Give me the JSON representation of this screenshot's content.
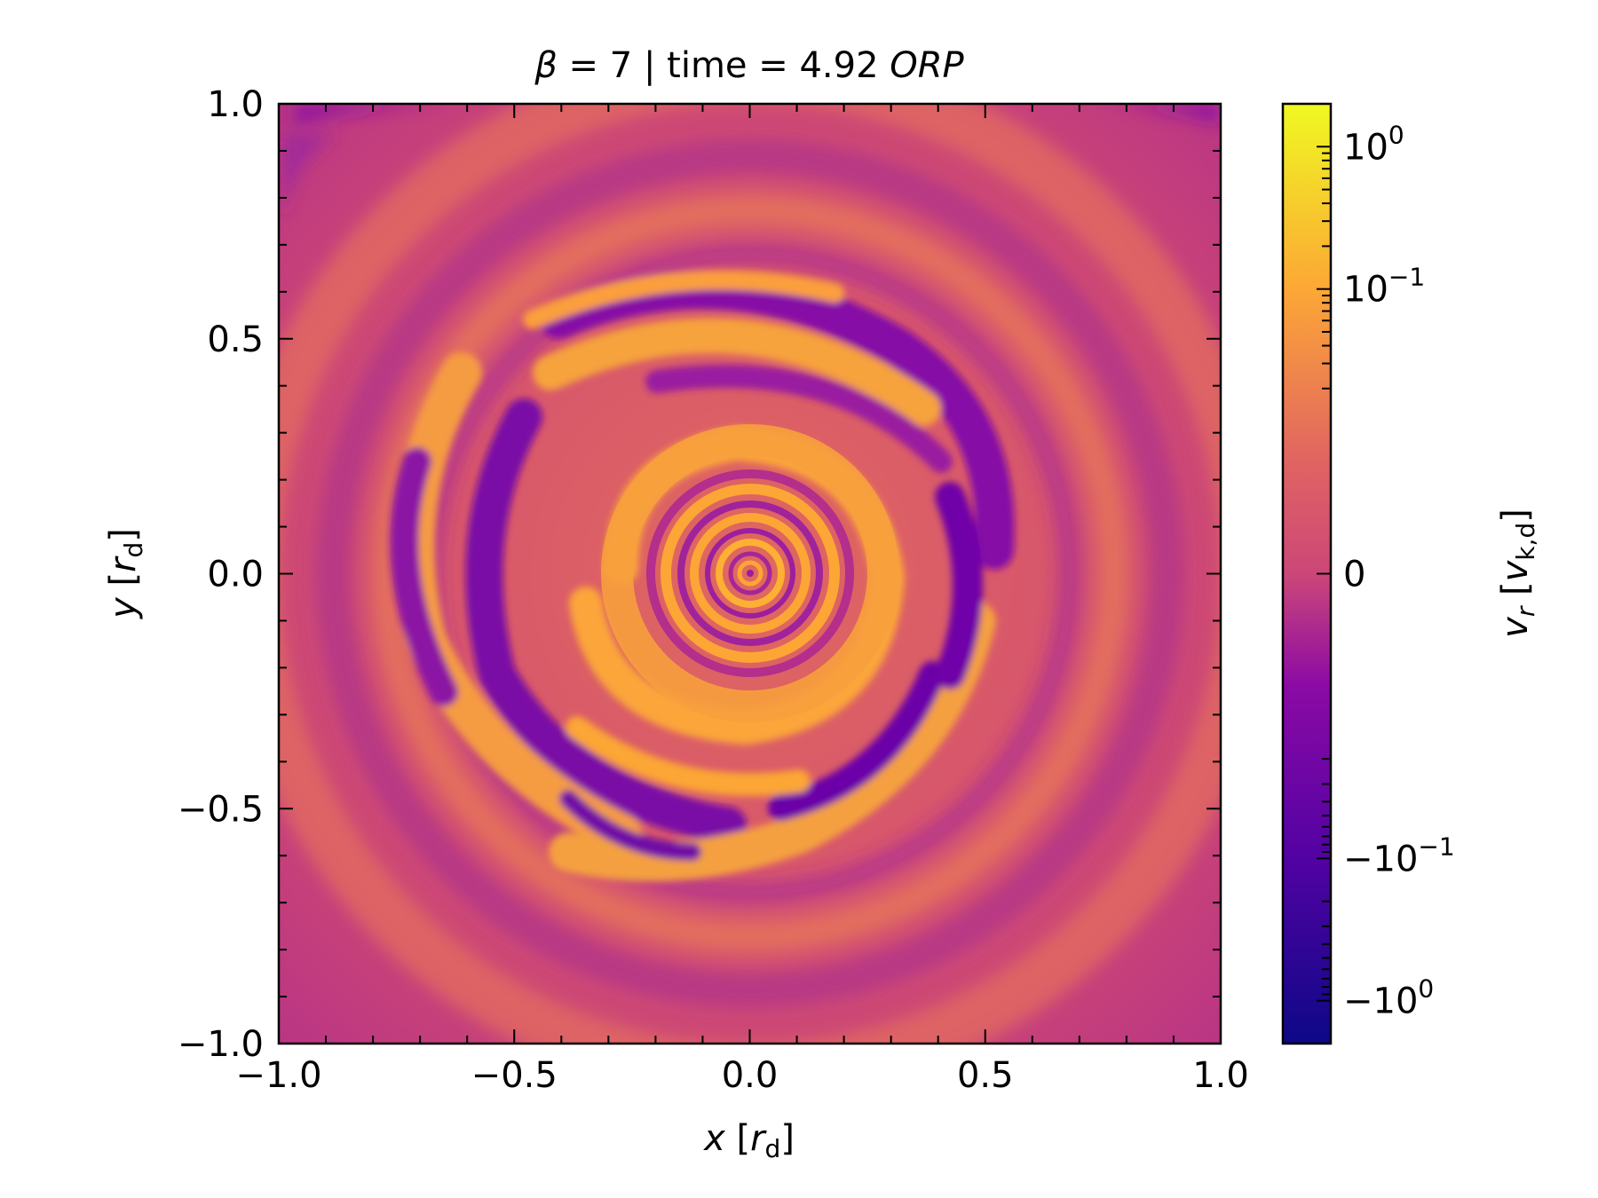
{
  "chart_data": {
    "type": "heatmap",
    "title": {
      "prefix": "β = ",
      "beta": "7",
      "separator": " | time = ",
      "time": "4.92",
      "unit": "ORP"
    },
    "xlabel": {
      "var": "x",
      "unit": "r",
      "unit_sub": "d"
    },
    "ylabel": {
      "var": "y",
      "unit": "r",
      "unit_sub": "d"
    },
    "xlim": [
      -1.0,
      1.0
    ],
    "ylim": [
      -1.0,
      1.0
    ],
    "x_ticks": [
      -1.0,
      -0.5,
      0.0,
      0.5,
      1.0
    ],
    "x_tick_labels": [
      "−1.0",
      "−0.5",
      "0.0",
      "0.5",
      "1.0"
    ],
    "y_ticks": [
      -1.0,
      -0.5,
      0.0,
      0.5,
      1.0
    ],
    "y_tick_labels": [
      "−1.0",
      "−0.5",
      "0.0",
      "0.5",
      "1.0"
    ],
    "minor_tick_step": 0.1,
    "field": "radial velocity, spiral disk structure",
    "colormap": "plasma",
    "colorbar": {
      "label": {
        "var": "v",
        "var_sub": "r",
        "unit": "v",
        "unit_sub": "k,d"
      },
      "scale": "symlog",
      "range": [
        -2,
        2
      ],
      "linthresh": 0.01,
      "ticks": [
        {
          "value": 1,
          "base": "10",
          "exp": "0",
          "sign": ""
        },
        {
          "value": 0.1,
          "base": "10",
          "exp": "−1",
          "sign": ""
        },
        {
          "value": 0,
          "base": "0",
          "exp": "",
          "sign": ""
        },
        {
          "value": -0.1,
          "base": "10",
          "exp": "−1",
          "sign": "−"
        },
        {
          "value": -1,
          "base": "10",
          "exp": "0",
          "sign": "−"
        }
      ]
    },
    "colors": {
      "positive_fast": "#f0f921",
      "positive": "#fca636",
      "near_zero": "#cc4778",
      "negative": "#7e03a8",
      "negative_fast": "#0d0887"
    }
  }
}
